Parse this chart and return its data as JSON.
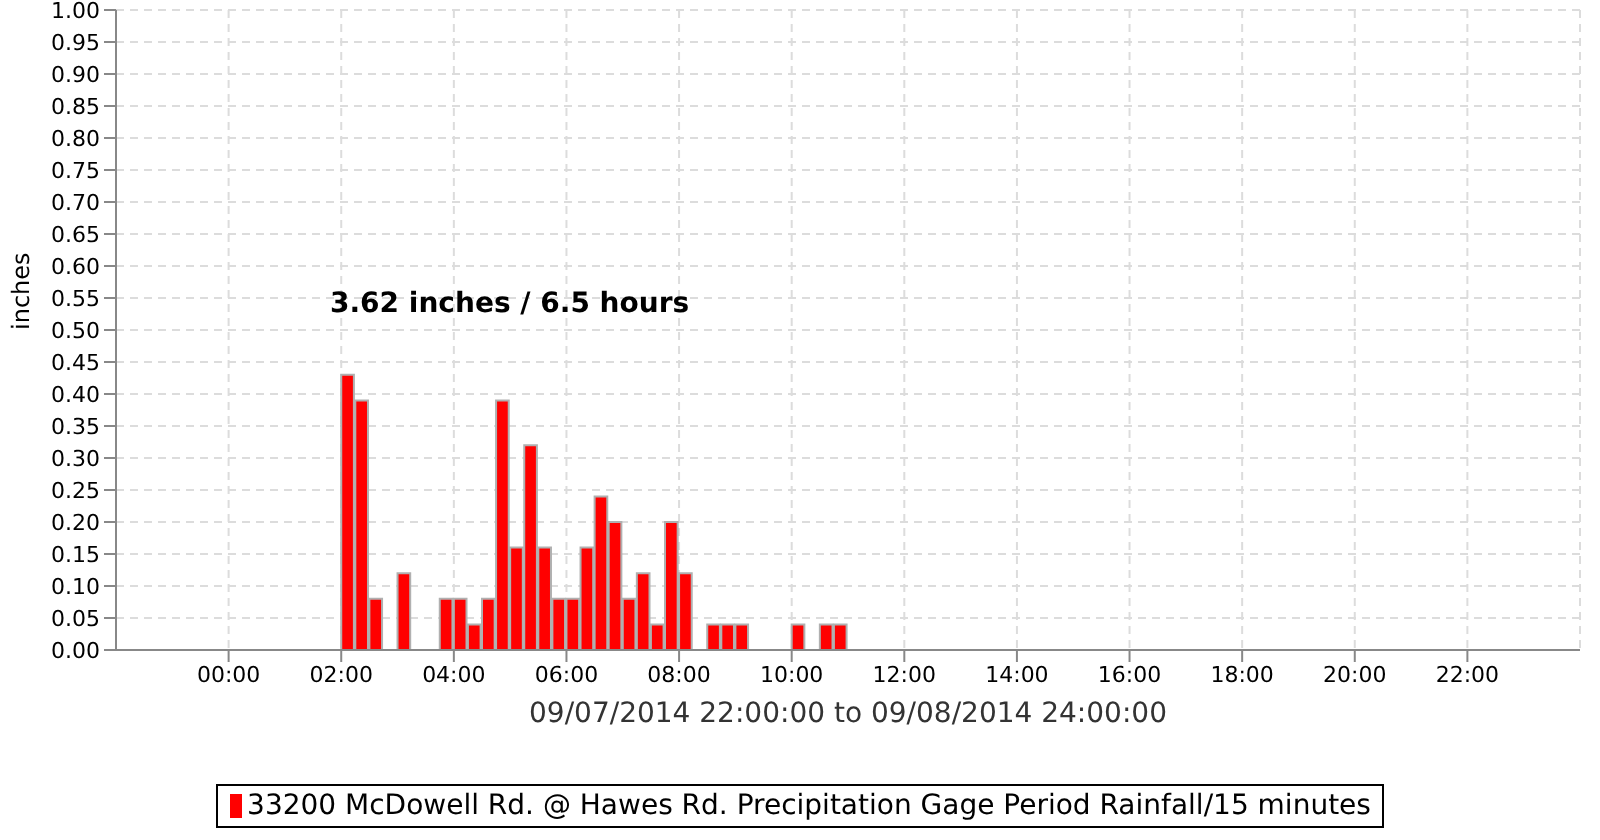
{
  "chart_data": {
    "type": "bar",
    "xlabel": "09/07/2014 22:00:00 to 09/08/2014 24:00:00",
    "ylabel": "inches",
    "annotations": [
      "3.62 inches / 6.5 hours"
    ],
    "x": [
      2.125,
      2.375,
      2.625,
      3.125,
      3.875,
      4.125,
      4.375,
      4.625,
      4.875,
      5.125,
      5.375,
      5.625,
      5.875,
      6.125,
      6.375,
      6.625,
      6.875,
      7.125,
      7.375,
      7.625,
      7.875,
      8.125,
      8.625,
      8.875,
      9.125,
      10.125,
      10.625,
      10.875
    ],
    "series": [
      {
        "name": "33200 McDowell Rd. @ Hawes Rd. Precipitation Gage Period Rainfall/15 minutes",
        "color": "#ff0000",
        "values": [
          0.43,
          0.39,
          0.08,
          0.12,
          0.08,
          0.08,
          0.04,
          0.08,
          0.39,
          0.16,
          0.32,
          0.16,
          0.08,
          0.08,
          0.16,
          0.24,
          0.2,
          0.08,
          0.12,
          0.04,
          0.2,
          0.12,
          0.04,
          0.04,
          0.04,
          0.04,
          0.04,
          0.04
        ]
      }
    ],
    "xlim": [
      -2,
      24
    ],
    "xticks": [
      {
        "value": 0,
        "label": "00:00"
      },
      {
        "value": 2,
        "label": "02:00"
      },
      {
        "value": 4,
        "label": "04:00"
      },
      {
        "value": 6,
        "label": "06:00"
      },
      {
        "value": 8,
        "label": "08:00"
      },
      {
        "value": 10,
        "label": "10:00"
      },
      {
        "value": 12,
        "label": "12:00"
      },
      {
        "value": 14,
        "label": "14:00"
      },
      {
        "value": 16,
        "label": "16:00"
      },
      {
        "value": 18,
        "label": "18:00"
      },
      {
        "value": 20,
        "label": "20:00"
      },
      {
        "value": 22,
        "label": "22:00"
      }
    ],
    "ylim": [
      0,
      1
    ],
    "yticks": [
      {
        "value": 0,
        "label": "0.00"
      },
      {
        "value": 0.05,
        "label": "0.05"
      },
      {
        "value": 0.1,
        "label": "0.10"
      },
      {
        "value": 0.15,
        "label": "0.15"
      },
      {
        "value": 0.2,
        "label": "0.20"
      },
      {
        "value": 0.25,
        "label": "0.25"
      },
      {
        "value": 0.3,
        "label": "0.30"
      },
      {
        "value": 0.35,
        "label": "0.35"
      },
      {
        "value": 0.4,
        "label": "0.40"
      },
      {
        "value": 0.45,
        "label": "0.45"
      },
      {
        "value": 0.5,
        "label": "0.50"
      },
      {
        "value": 0.55,
        "label": "0.55"
      },
      {
        "value": 0.6,
        "label": "0.60"
      },
      {
        "value": 0.65,
        "label": "0.65"
      },
      {
        "value": 0.7,
        "label": "0.70"
      },
      {
        "value": 0.75,
        "label": "0.75"
      },
      {
        "value": 0.8,
        "label": "0.80"
      },
      {
        "value": 0.85,
        "label": "0.85"
      },
      {
        "value": 0.9,
        "label": "0.90"
      },
      {
        "value": 0.95,
        "label": "0.95"
      },
      {
        "value": 1,
        "label": "1.00"
      }
    ],
    "grid": true,
    "legend": "bottom"
  }
}
